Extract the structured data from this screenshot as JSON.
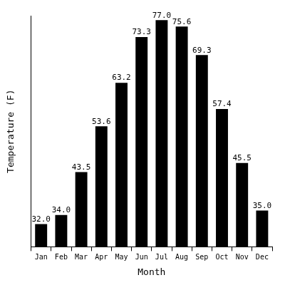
{
  "chart_data": {
    "type": "bar",
    "x_label": "Month",
    "y_label": "Temperature (F)",
    "categories": [
      "Jan",
      "Feb",
      "Mar",
      "Apr",
      "May",
      "Jun",
      "Jul",
      "Aug",
      "Sep",
      "Oct",
      "Nov",
      "Dec"
    ],
    "values": [
      32.0,
      34.0,
      43.5,
      53.6,
      63.2,
      73.3,
      77.0,
      75.6,
      69.3,
      57.4,
      45.5,
      35.0
    ],
    "value_labels": [
      "32.0",
      "34.0",
      "43.5",
      "53.6",
      "63.2",
      "73.3",
      "77.0",
      "75.6",
      "69.3",
      "57.4",
      "45.5",
      "35.0"
    ],
    "color": "#000000",
    "ylim": [
      27,
      78
    ],
    "grid": false,
    "data_labels": true,
    "tick_labels": "x"
  }
}
